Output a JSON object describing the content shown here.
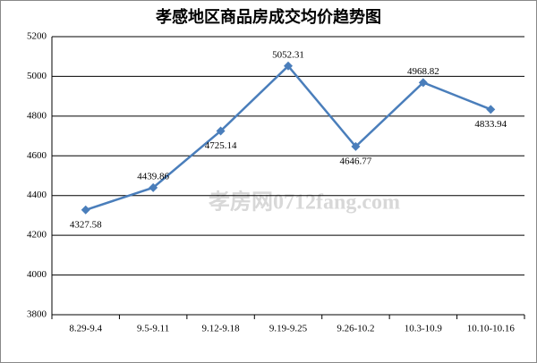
{
  "chart_data": {
    "type": "line",
    "title": "孝感地区商品房成交均价趋势图",
    "categories": [
      "8.29-9.4",
      "9.5-9.11",
      "9.12-9.18",
      "9.19-9.25",
      "9.26-10.2",
      "10.3-10.9",
      "10.10-10.16"
    ],
    "series": [
      {
        "name": "成交均价",
        "color": "#4a7ebb",
        "values": [
          4327.58,
          4439.86,
          4725.14,
          5052.31,
          4646.77,
          4968.82,
          4833.94
        ]
      }
    ],
    "ylim": [
      3800,
      5200
    ],
    "yticks": [
      3800,
      4000,
      4200,
      4400,
      4600,
      4800,
      5000,
      5200
    ],
    "grid": true,
    "watermark": "孝房网0712fang.com"
  }
}
